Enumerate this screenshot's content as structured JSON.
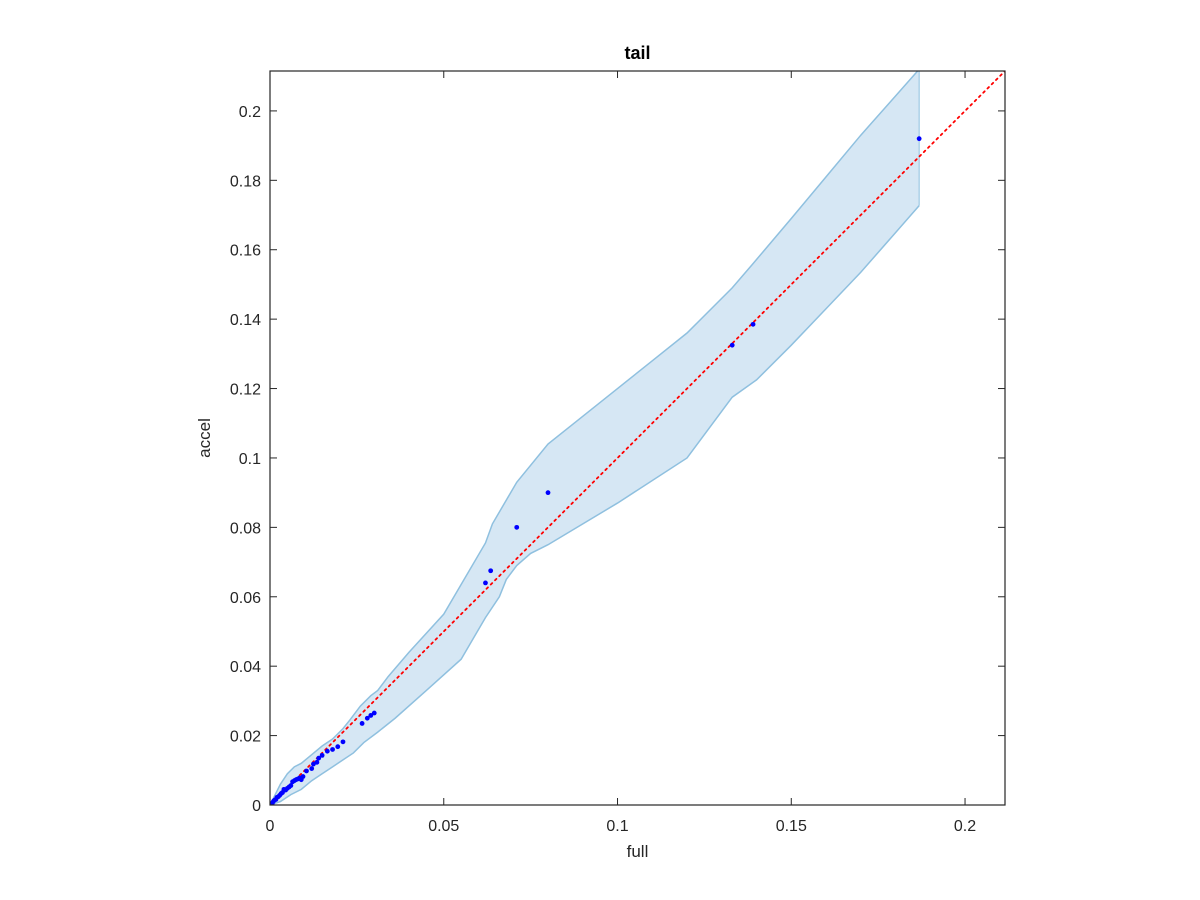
{
  "chart_data": {
    "type": "scatter",
    "title": "tail",
    "xlabel": "full",
    "ylabel": "accel",
    "xlim": [
      0,
      0.2115
    ],
    "ylim": [
      0,
      0.2115
    ],
    "xticks": [
      0,
      0.05,
      0.1,
      0.15,
      0.2
    ],
    "xtick_labels": [
      "0",
      "0.05",
      "0.1",
      "0.15",
      "0.2"
    ],
    "yticks": [
      0,
      0.02,
      0.04,
      0.06,
      0.08,
      0.1,
      0.12,
      0.14,
      0.16,
      0.18,
      0.2
    ],
    "ytick_labels": [
      "0",
      "0.02",
      "0.04",
      "0.06",
      "0.08",
      "0.1",
      "0.12",
      "0.14",
      "0.16",
      "0.18",
      "0.2"
    ],
    "grid": false,
    "box": true,
    "colors": {
      "points": "#0000ff",
      "reference_line": "#ff0000",
      "band_fill": "#d6e7f4",
      "band_edge": "#8fc0df",
      "axes": "#262626"
    },
    "reference_line": {
      "style": "dotted",
      "from": [
        0,
        0
      ],
      "to": [
        0.2115,
        0.2115
      ]
    },
    "band": {
      "upper": [
        [
          0,
          0
        ],
        [
          0.001,
          0.002
        ],
        [
          0.002,
          0.004
        ],
        [
          0.003,
          0.006
        ],
        [
          0.005,
          0.009
        ],
        [
          0.007,
          0.011
        ],
        [
          0.009,
          0.012
        ],
        [
          0.012,
          0.0145
        ],
        [
          0.015,
          0.017
        ],
        [
          0.018,
          0.019
        ],
        [
          0.021,
          0.022
        ],
        [
          0.023,
          0.0245
        ],
        [
          0.026,
          0.0285
        ],
        [
          0.029,
          0.0315
        ],
        [
          0.031,
          0.033
        ],
        [
          0.034,
          0.037
        ],
        [
          0.04,
          0.044
        ],
        [
          0.05,
          0.055
        ],
        [
          0.062,
          0.0755
        ],
        [
          0.064,
          0.081
        ],
        [
          0.071,
          0.093
        ],
        [
          0.08,
          0.104
        ],
        [
          0.09,
          0.112
        ],
        [
          0.1,
          0.12
        ],
        [
          0.11,
          0.128
        ],
        [
          0.12,
          0.136
        ],
        [
          0.133,
          0.149
        ],
        [
          0.139,
          0.156
        ],
        [
          0.15,
          0.169
        ],
        [
          0.16,
          0.181
        ],
        [
          0.17,
          0.193
        ],
        [
          0.1868,
          0.212
        ]
      ],
      "lower": [
        [
          0,
          0
        ],
        [
          0.003,
          0.001
        ],
        [
          0.006,
          0.003
        ],
        [
          0.009,
          0.0045
        ],
        [
          0.012,
          0.007
        ],
        [
          0.015,
          0.009
        ],
        [
          0.018,
          0.011
        ],
        [
          0.021,
          0.013
        ],
        [
          0.024,
          0.015
        ],
        [
          0.027,
          0.018
        ],
        [
          0.031,
          0.021
        ],
        [
          0.036,
          0.025
        ],
        [
          0.045,
          0.033
        ],
        [
          0.055,
          0.042
        ],
        [
          0.062,
          0.054
        ],
        [
          0.066,
          0.06
        ],
        [
          0.068,
          0.065
        ],
        [
          0.071,
          0.069
        ],
        [
          0.075,
          0.0725
        ],
        [
          0.08,
          0.075
        ],
        [
          0.1,
          0.087
        ],
        [
          0.12,
          0.1
        ],
        [
          0.133,
          0.1175
        ],
        [
          0.14,
          0.1225
        ],
        [
          0.15,
          0.1325
        ],
        [
          0.16,
          0.143
        ],
        [
          0.17,
          0.1535
        ],
        [
          0.1868,
          0.1727
        ]
      ]
    },
    "points": {
      "x": [
        0.0003,
        0.0007,
        0.001,
        0.0013,
        0.0017,
        0.002,
        0.0024,
        0.0028,
        0.0032,
        0.0036,
        0.004,
        0.0045,
        0.005,
        0.0055,
        0.006,
        0.0065,
        0.007,
        0.0075,
        0.008,
        0.0085,
        0.009,
        0.0095,
        0.0105,
        0.012,
        0.0125,
        0.0135,
        0.014,
        0.015,
        0.0165,
        0.018,
        0.0195,
        0.021,
        0.0265,
        0.028,
        0.029,
        0.03,
        0.062,
        0.0635,
        0.071,
        0.08,
        0.133,
        0.139,
        0.1868
      ],
      "y": [
        0.0003,
        0.0006,
        0.0011,
        0.0014,
        0.0016,
        0.0022,
        0.0024,
        0.0028,
        0.0033,
        0.0036,
        0.0045,
        0.0043,
        0.0048,
        0.0052,
        0.0056,
        0.0067,
        0.007,
        0.0073,
        0.0075,
        0.0078,
        0.0073,
        0.0082,
        0.0098,
        0.0105,
        0.0118,
        0.0123,
        0.0135,
        0.0143,
        0.0155,
        0.016,
        0.0168,
        0.0182,
        0.0235,
        0.025,
        0.0258,
        0.0265,
        0.064,
        0.0675,
        0.08,
        0.09,
        0.1325,
        0.1385,
        0.192
      ]
    }
  }
}
